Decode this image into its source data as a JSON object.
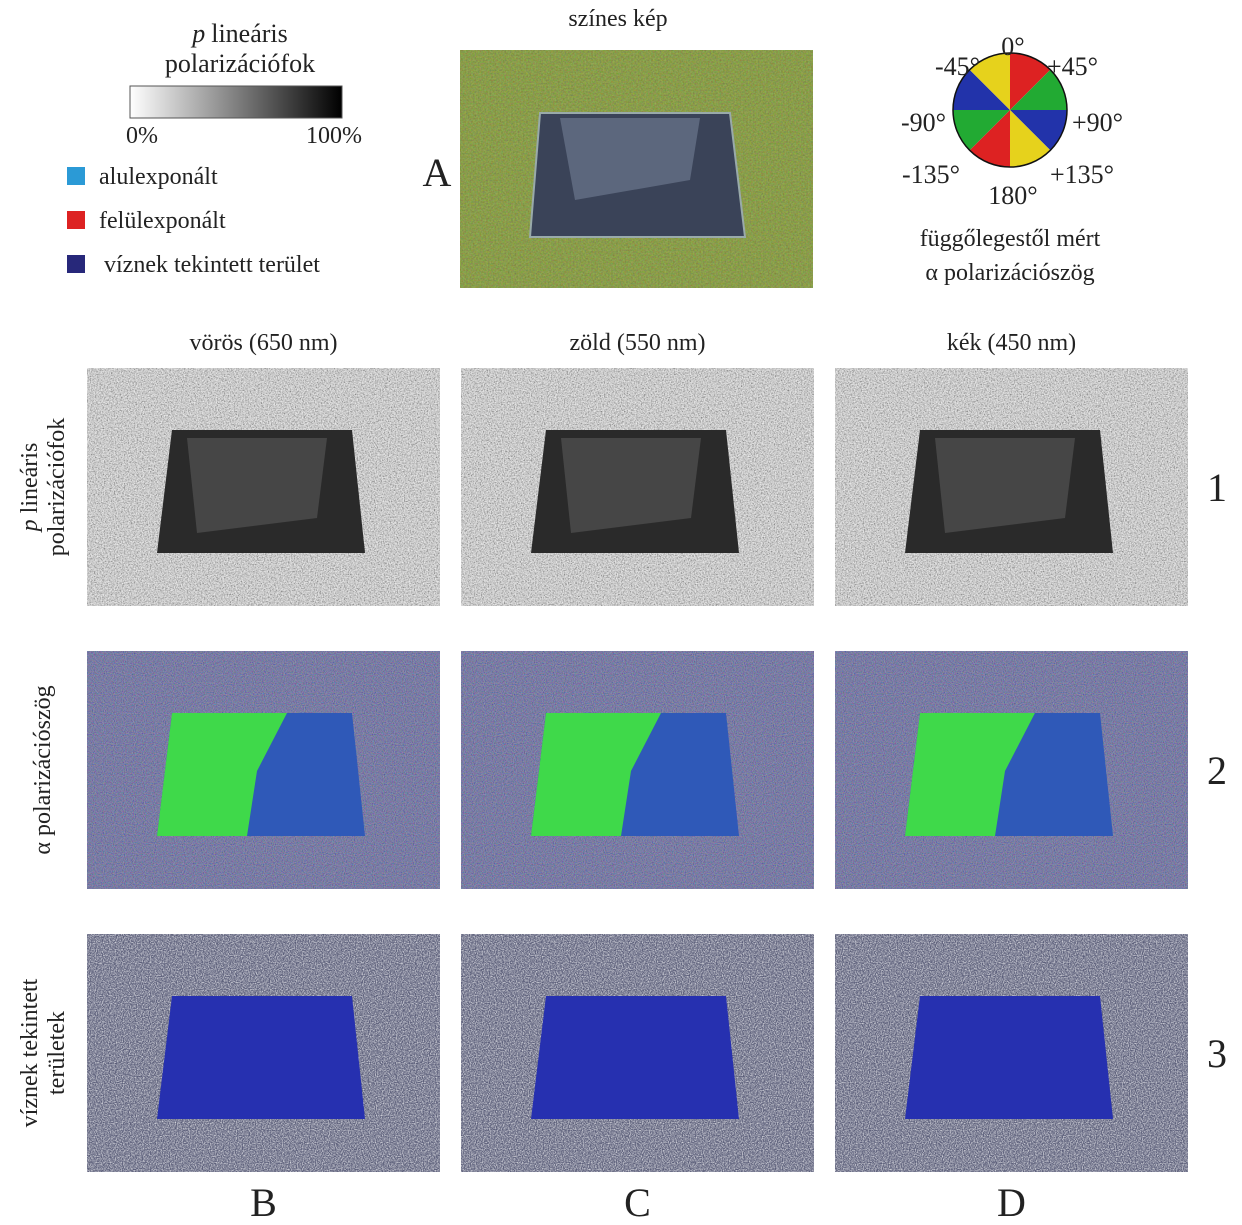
{
  "legend": {
    "title_symbol": "p",
    "title_text": "lineáris",
    "title_line2": "polarizációfok",
    "scale_min": "0%",
    "scale_max": "100%",
    "items": [
      {
        "label": "alulexponált",
        "color": "#2b9ad6"
      },
      {
        "label": "felülexponált",
        "color": "#dd2222"
      },
      {
        "label": "víznek tekintett terület",
        "color": "#27287a"
      }
    ]
  },
  "color_image": {
    "title": "színes kép",
    "letter": "A"
  },
  "angle_wheel": {
    "labels": [
      "0°",
      "+45°",
      "+90°",
      "+135°",
      "180°",
      "-135°",
      "-90°",
      "-45°"
    ],
    "caption_line1": "függőlegestől mért",
    "caption_line2": "α polarizációszög"
  },
  "columns": [
    {
      "header": "vörös (650 nm)",
      "letter": "B"
    },
    {
      "header": "zöld (550 nm)",
      "letter": "C"
    },
    {
      "header": "kék (450 nm)",
      "letter": "D"
    }
  ],
  "rows": [
    {
      "symbol": "p",
      "lines": [
        "lineáris",
        "polarizációfok"
      ],
      "number": "1"
    },
    {
      "lines": [
        "α polarizációszög"
      ],
      "number": "2"
    },
    {
      "lines": [
        "víznek tekintett",
        "területek"
      ],
      "number": "3"
    }
  ]
}
